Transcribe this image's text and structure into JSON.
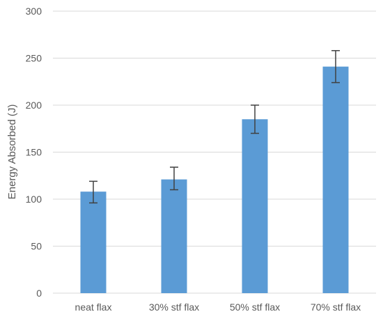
{
  "chart_data": {
    "type": "bar",
    "title": "",
    "xlabel": "",
    "ylabel": "Energy Absorbed (J)",
    "categories": [
      "neat flax",
      "30% stf flax",
      "50% stf flax",
      "70% stf flax"
    ],
    "values": [
      108,
      121,
      185,
      241
    ],
    "error_low": [
      96,
      110,
      170,
      224
    ],
    "error_high": [
      119,
      134,
      200,
      258
    ],
    "ylim": [
      0,
      300
    ],
    "yticks": [
      0,
      50,
      100,
      150,
      200,
      250,
      300
    ],
    "grid": true,
    "legend": "none",
    "colors": {
      "bar": "#5b9bd5",
      "error_bar": "#404040",
      "grid": "#d9d9d9",
      "text": "#595959"
    }
  }
}
